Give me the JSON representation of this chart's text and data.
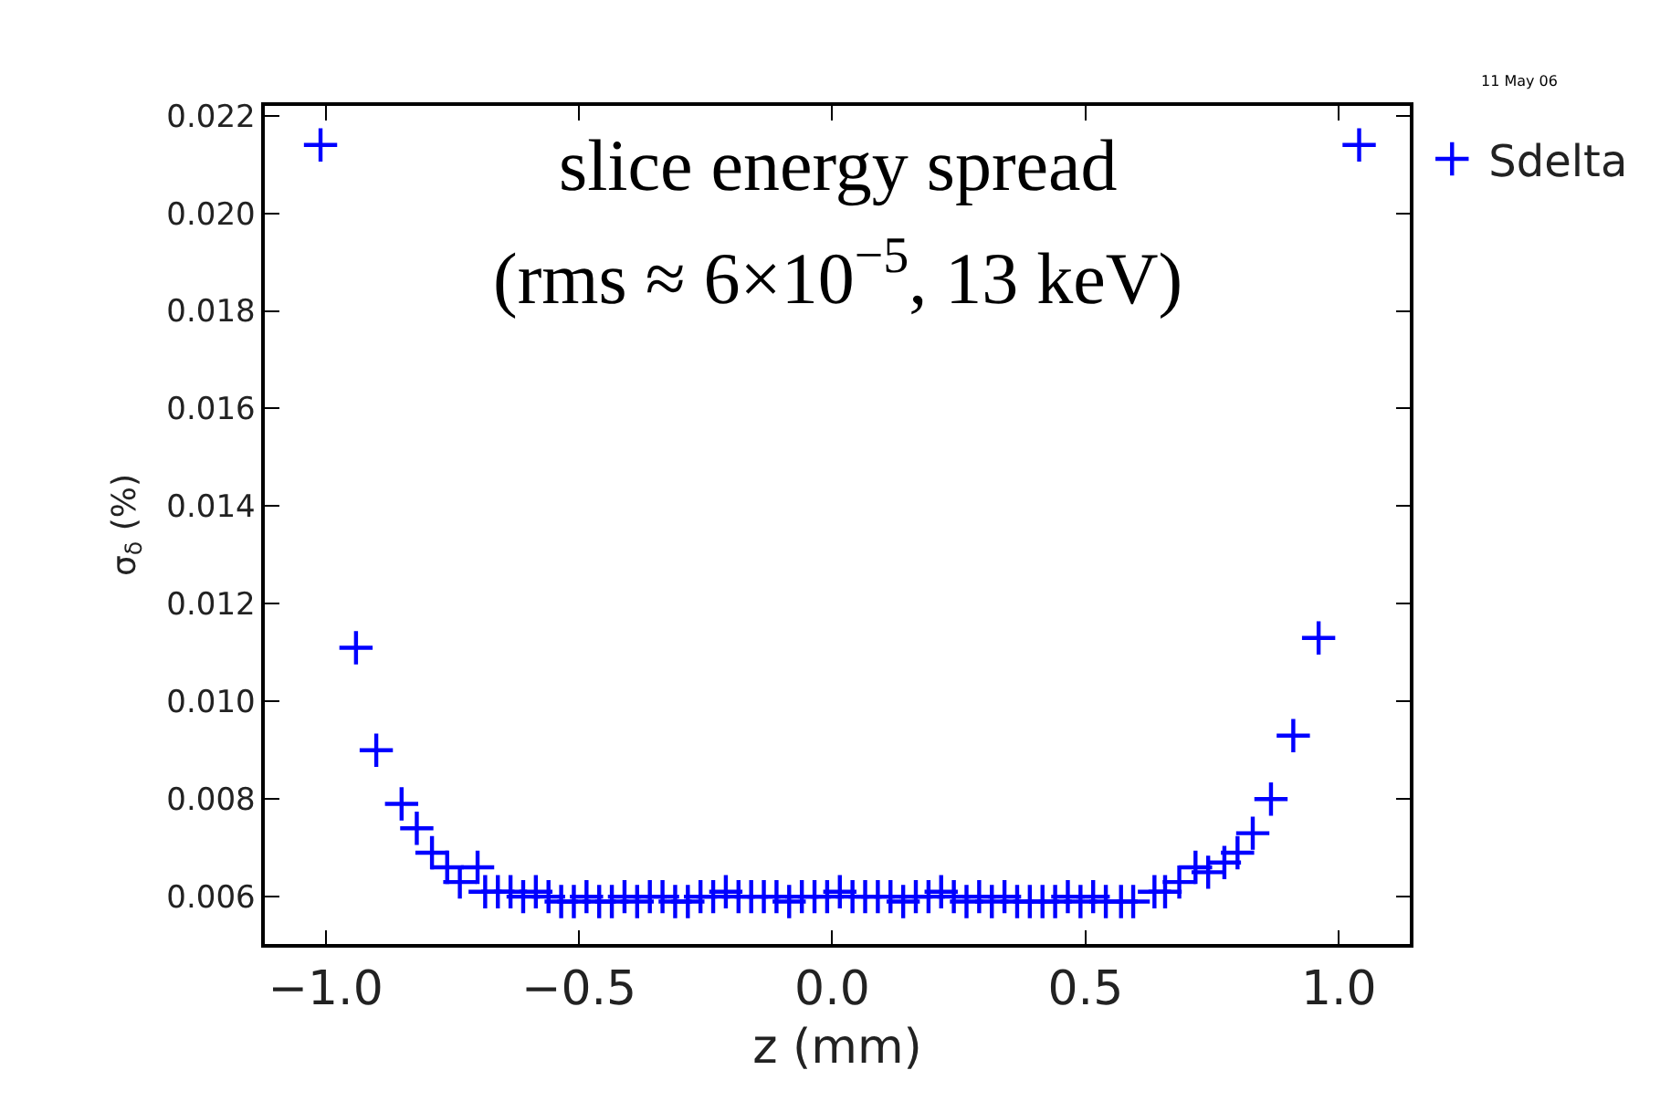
{
  "chart_data": {
    "type": "scatter",
    "xlabel": "z (mm)",
    "ylabel": "σ$_{δ}$ (%)",
    "annotations": [
      "slice energy spread",
      "(rms ≈ 6×10$^{−5}$, 13 keV)",
      "11 May 06"
    ],
    "xlim": [
      -1.12,
      1.14
    ],
    "ylim": [
      0.00503,
      0.0222
    ],
    "xticks": [
      {
        "value": -1,
        "label": "−1.0"
      },
      {
        "value": -0.5,
        "label": "−0.5"
      },
      {
        "value": 0,
        "label": "0.0"
      },
      {
        "value": 0.5,
        "label": "0.5"
      },
      {
        "value": 1,
        "label": "1.0"
      }
    ],
    "yticks": [
      0.006,
      0.008,
      {
        "value": 0.01,
        "label": "0.010"
      },
      0.012,
      0.014,
      0.016,
      0.018,
      {
        "value": 0.02,
        "label": "0.020"
      },
      0.022
    ],
    "grid": false,
    "legend": "top right",
    "marker": "cross",
    "series": [
      {
        "name": "Sdelta",
        "color": "#0000ff",
        "x": [
          -1.01,
          -0.94,
          -0.9,
          -0.85,
          -0.82,
          -0.79,
          -0.76,
          -0.735,
          -0.7,
          -0.685,
          -0.66,
          -0.635,
          -0.61,
          -0.585,
          -0.56,
          -0.535,
          -0.51,
          -0.485,
          -0.46,
          -0.435,
          -0.41,
          -0.385,
          -0.36,
          -0.335,
          -0.31,
          -0.285,
          -0.26,
          -0.235,
          -0.21,
          -0.185,
          -0.16,
          -0.135,
          -0.11,
          -0.085,
          -0.06,
          -0.035,
          -0.01,
          0.015,
          0.04,
          0.065,
          0.09,
          0.115,
          0.14,
          0.165,
          0.19,
          0.215,
          0.24,
          0.265,
          0.29,
          0.315,
          0.34,
          0.365,
          0.39,
          0.415,
          0.44,
          0.465,
          0.49,
          0.515,
          0.54,
          0.57,
          0.594,
          0.636,
          0.657,
          0.685,
          0.717,
          0.742,
          0.774,
          0.8,
          0.83,
          0.866,
          0.91,
          0.96,
          1.04
        ],
        "values": [
          0.0214,
          0.0111,
          0.009,
          0.0079,
          0.0074,
          0.0069,
          0.0066,
          0.0063,
          0.0066,
          0.0061,
          0.0061,
          0.0061,
          0.006,
          0.0061,
          0.006,
          0.0059,
          0.0059,
          0.006,
          0.0059,
          0.0059,
          0.006,
          0.0059,
          0.006,
          0.006,
          0.0059,
          0.0059,
          0.006,
          0.006,
          0.0061,
          0.006,
          0.006,
          0.006,
          0.006,
          0.0059,
          0.006,
          0.006,
          0.006,
          0.0061,
          0.006,
          0.006,
          0.006,
          0.006,
          0.0059,
          0.006,
          0.006,
          0.0061,
          0.006,
          0.0059,
          0.006,
          0.0059,
          0.006,
          0.0059,
          0.0059,
          0.0059,
          0.0059,
          0.006,
          0.0059,
          0.006,
          0.0059,
          0.0059,
          0.0059,
          0.0061,
          0.0061,
          0.0063,
          0.0066,
          0.0065,
          0.0067,
          0.0069,
          0.0073,
          0.008,
          0.0093,
          0.0113,
          0.0214
        ]
      }
    ]
  }
}
